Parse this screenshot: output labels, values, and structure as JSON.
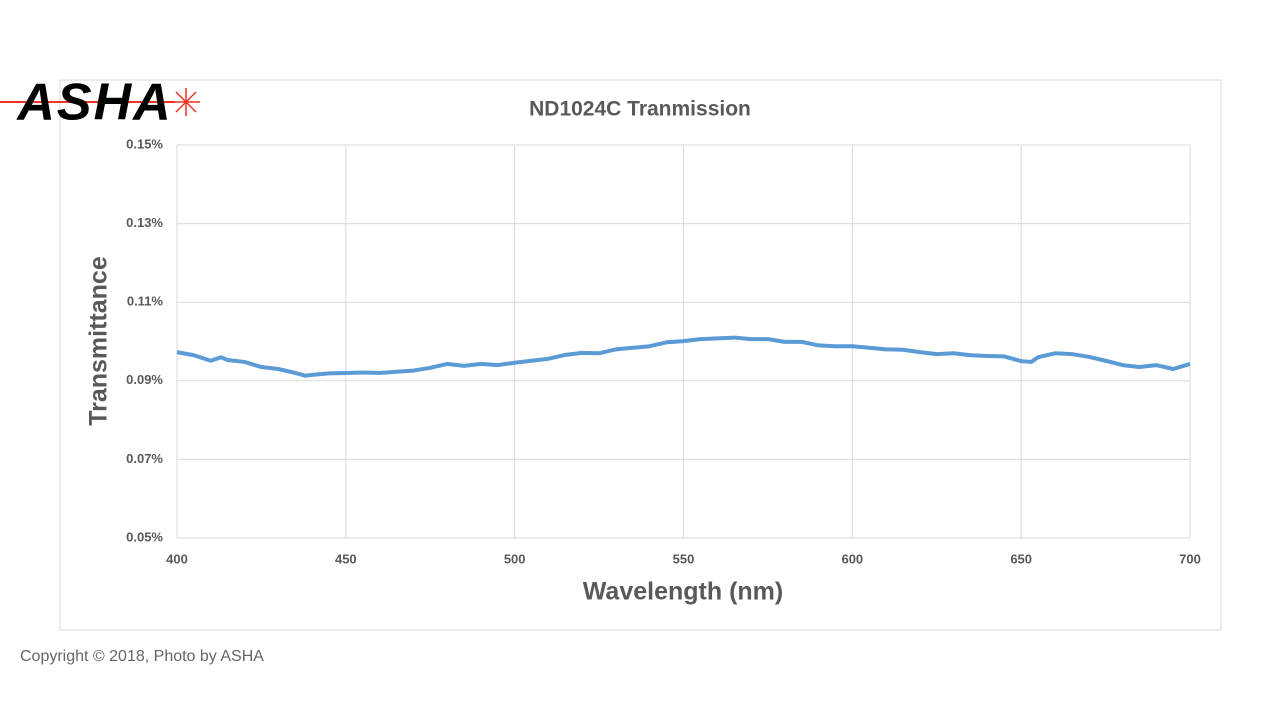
{
  "logo": "ASHA",
  "footer": "Copyright © 2018, Photo by ASHA",
  "chart_data": {
    "type": "line",
    "title": "ND1024C Tranmission",
    "x_label": "Wavelength (nm)",
    "y_label": "Transmittance",
    "x": [
      400,
      405,
      410,
      413,
      415,
      420,
      425,
      430,
      435,
      438,
      440,
      445,
      450,
      455,
      460,
      465,
      470,
      475,
      480,
      485,
      490,
      495,
      500,
      505,
      510,
      515,
      520,
      525,
      530,
      535,
      540,
      545,
      550,
      555,
      560,
      565,
      570,
      575,
      580,
      585,
      590,
      595,
      600,
      605,
      610,
      615,
      620,
      625,
      630,
      635,
      640,
      645,
      650,
      653,
      655,
      660,
      665,
      670,
      675,
      680,
      685,
      690,
      695,
      700
    ],
    "series": [
      {
        "name": "Transmittance",
        "color": "#5b9bd5",
        "values": [
          0.0973,
          0.0965,
          0.0951,
          0.096,
          0.0953,
          0.0948,
          0.0935,
          0.093,
          0.092,
          0.0913,
          0.0915,
          0.0919,
          0.092,
          0.0921,
          0.092,
          0.0923,
          0.0926,
          0.0933,
          0.0943,
          0.0938,
          0.0943,
          0.094,
          0.0946,
          0.0951,
          0.0956,
          0.0966,
          0.0971,
          0.097,
          0.098,
          0.0984,
          0.0988,
          0.0998,
          0.1001,
          0.1006,
          0.1008,
          0.101,
          0.1006,
          0.1006,
          0.0999,
          0.0999,
          0.099,
          0.0988,
          0.0988,
          0.0984,
          0.098,
          0.0979,
          0.0973,
          0.0968,
          0.097,
          0.0965,
          0.0963,
          0.0962,
          0.095,
          0.0948,
          0.096,
          0.097,
          0.0968,
          0.0961,
          0.0951,
          0.094,
          0.0935,
          0.094,
          0.093,
          0.0943
        ]
      }
    ],
    "xlim": [
      400,
      700
    ],
    "xticks": [
      400,
      450,
      500,
      550,
      600,
      650,
      700
    ],
    "ylim": [
      0.05,
      0.15
    ],
    "yticks": [
      {
        "value": 0.05,
        "label": "0.05%"
      },
      {
        "value": 0.07,
        "label": "0.07%"
      },
      {
        "value": 0.09,
        "label": "0.09%"
      },
      {
        "value": 0.11,
        "label": "0.11%"
      },
      {
        "value": 0.13,
        "label": "0.13%"
      },
      {
        "value": 0.15,
        "label": "0.15%"
      }
    ],
    "grid": true
  }
}
